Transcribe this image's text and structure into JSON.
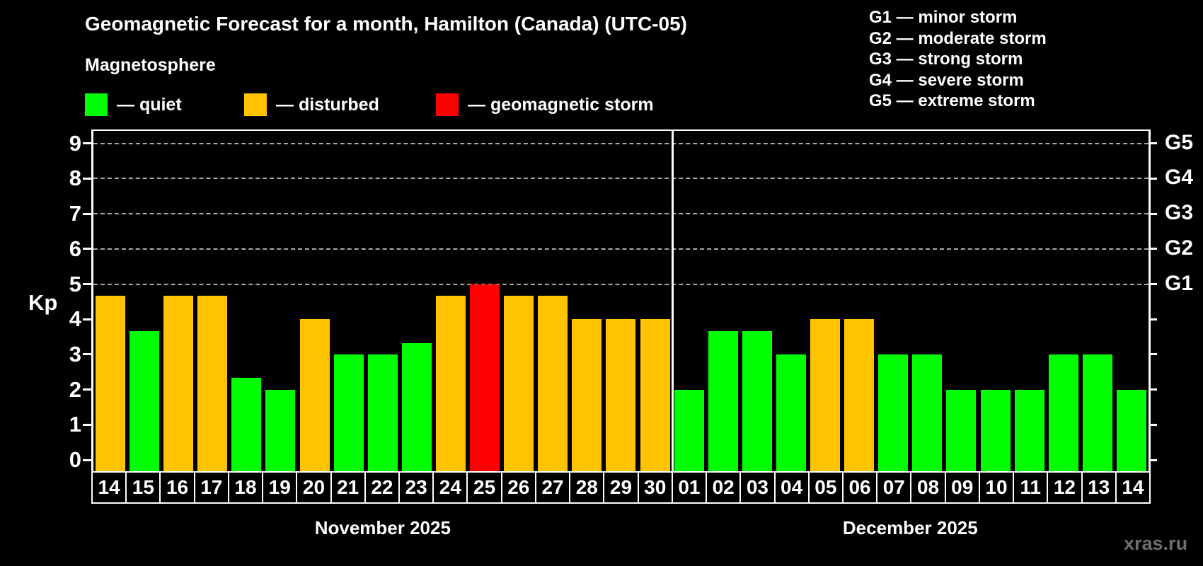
{
  "header": {
    "title": "Geomagnetic Forecast for a month, Hamilton (Canada) (UTC-05)",
    "subtitle": "Magnetosphere"
  },
  "legend": {
    "items": [
      {
        "label": "— quiet",
        "status": "quiet"
      },
      {
        "label": "— disturbed",
        "status": "disturbed"
      },
      {
        "label": "— geomagnetic storm",
        "status": "storm"
      }
    ]
  },
  "g_scale_legend": {
    "items": [
      "G1 — minor storm",
      "G2 — moderate storm",
      "G3 — strong storm",
      "G4 — severe storm",
      "G5 — extreme storm"
    ]
  },
  "watermark": "xras.ru",
  "chart_data": {
    "type": "bar",
    "title": "Geomagnetic Forecast for a month, Hamilton (Canada) (UTC-05)",
    "ylabel": "Kp",
    "ylim": [
      0,
      9.4
    ],
    "y_ticks": [
      0,
      1,
      2,
      3,
      4,
      5,
      6,
      7,
      8,
      9
    ],
    "gridlines_at": [
      5,
      6,
      7,
      8,
      9
    ],
    "grid": "dashed horizontal at storm levels only",
    "right_axis_labels": [
      {
        "label": "G1",
        "kp": 5
      },
      {
        "label": "G2",
        "kp": 6
      },
      {
        "label": "G3",
        "kp": 7
      },
      {
        "label": "G4",
        "kp": 8
      },
      {
        "label": "G5",
        "kp": 9
      }
    ],
    "categories": [
      "14",
      "15",
      "16",
      "17",
      "18",
      "19",
      "20",
      "21",
      "22",
      "23",
      "24",
      "25",
      "26",
      "27",
      "28",
      "29",
      "30",
      "01",
      "02",
      "03",
      "04",
      "05",
      "06",
      "07",
      "08",
      "09",
      "10",
      "11",
      "12",
      "13",
      "14"
    ],
    "values": [
      4.67,
      3.67,
      4.67,
      4.67,
      2.33,
      2,
      4,
      3,
      3,
      3.33,
      4.67,
      5,
      4.67,
      4.67,
      4,
      4,
      4,
      2,
      3.67,
      3.67,
      3,
      4,
      4,
      3,
      3,
      2,
      2,
      2,
      3,
      3,
      2
    ],
    "statuses": [
      "disturbed",
      "quiet",
      "disturbed",
      "disturbed",
      "quiet",
      "quiet",
      "disturbed",
      "quiet",
      "quiet",
      "quiet",
      "disturbed",
      "storm",
      "disturbed",
      "disturbed",
      "disturbed",
      "disturbed",
      "disturbed",
      "quiet",
      "quiet",
      "quiet",
      "quiet",
      "disturbed",
      "disturbed",
      "quiet",
      "quiet",
      "quiet",
      "quiet",
      "quiet",
      "quiet",
      "quiet",
      "quiet"
    ],
    "months": [
      {
        "label": "November 2025",
        "days": 17
      },
      {
        "label": "December 2025",
        "days": 14
      }
    ],
    "colors": {
      "quiet": "#00ff00",
      "disturbed": "#ffc300",
      "storm": "#ff0000",
      "background": "#000000",
      "text": "#ffffff",
      "grid": "#aaaaaa",
      "watermark": "#6f6f6f"
    }
  }
}
